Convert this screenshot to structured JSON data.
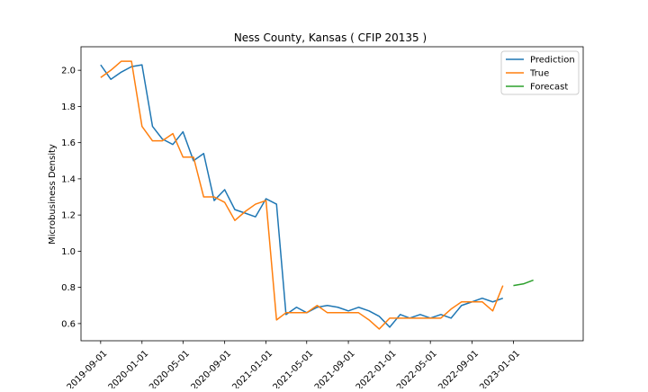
{
  "chart_data": {
    "type": "line",
    "title": "Ness County, Kansas ( CFIP 20135 )",
    "xlabel": "",
    "ylabel": "Microbusiness Density",
    "x_ticks": [
      "2019-09-01",
      "2020-01-01",
      "2020-05-01",
      "2020-09-01",
      "2021-01-01",
      "2021-05-01",
      "2021-09-01",
      "2022-01-01",
      "2022-05-01",
      "2022-09-01",
      "2023-01-01"
    ],
    "y_ticks": [
      "0.6",
      "0.8",
      "1.0",
      "1.2",
      "1.4",
      "1.6",
      "1.8",
      "2.0"
    ],
    "xlim": [
      "2019-07-05",
      "2023-07-26"
    ],
    "ylim": [
      0.505,
      2.13
    ],
    "grid": false,
    "legend_position": "top-right",
    "series": [
      {
        "name": "Prediction",
        "color": "#1f77b4",
        "points": [
          [
            "2019-09-01",
            2.03
          ],
          [
            "2019-10-01",
            1.95
          ],
          [
            "2019-11-01",
            1.99
          ],
          [
            "2019-12-01",
            2.02
          ],
          [
            "2020-01-01",
            2.03
          ],
          [
            "2020-02-01",
            1.69
          ],
          [
            "2020-03-01",
            1.62
          ],
          [
            "2020-04-01",
            1.59
          ],
          [
            "2020-05-01",
            1.66
          ],
          [
            "2020-06-01",
            1.5
          ],
          [
            "2020-07-01",
            1.54
          ],
          [
            "2020-08-01",
            1.28
          ],
          [
            "2020-09-01",
            1.34
          ],
          [
            "2020-10-01",
            1.23
          ],
          [
            "2020-11-01",
            1.21
          ],
          [
            "2020-12-01",
            1.19
          ],
          [
            "2021-01-01",
            1.29
          ],
          [
            "2021-02-01",
            1.26
          ],
          [
            "2021-03-01",
            0.65
          ],
          [
            "2021-04-01",
            0.69
          ],
          [
            "2021-05-01",
            0.66
          ],
          [
            "2021-06-01",
            0.69
          ],
          [
            "2021-07-01",
            0.7
          ],
          [
            "2021-08-01",
            0.69
          ],
          [
            "2021-09-01",
            0.67
          ],
          [
            "2021-10-01",
            0.69
          ],
          [
            "2021-11-01",
            0.67
          ],
          [
            "2021-12-01",
            0.64
          ],
          [
            "2022-01-01",
            0.58
          ],
          [
            "2022-02-01",
            0.65
          ],
          [
            "2022-03-01",
            0.63
          ],
          [
            "2022-04-01",
            0.65
          ],
          [
            "2022-05-01",
            0.63
          ],
          [
            "2022-06-01",
            0.65
          ],
          [
            "2022-07-01",
            0.63
          ],
          [
            "2022-08-01",
            0.7
          ],
          [
            "2022-09-01",
            0.72
          ],
          [
            "2022-10-01",
            0.74
          ],
          [
            "2022-11-01",
            0.72
          ],
          [
            "2022-12-01",
            0.74
          ]
        ]
      },
      {
        "name": "True",
        "color": "#ff7f0e",
        "points": [
          [
            "2019-09-01",
            1.96
          ],
          [
            "2019-10-01",
            2.0
          ],
          [
            "2019-11-01",
            2.05
          ],
          [
            "2019-12-01",
            2.05
          ],
          [
            "2020-01-01",
            1.69
          ],
          [
            "2020-02-01",
            1.61
          ],
          [
            "2020-03-01",
            1.61
          ],
          [
            "2020-04-01",
            1.65
          ],
          [
            "2020-05-01",
            1.52
          ],
          [
            "2020-06-01",
            1.52
          ],
          [
            "2020-07-01",
            1.3
          ],
          [
            "2020-08-01",
            1.3
          ],
          [
            "2020-09-01",
            1.27
          ],
          [
            "2020-10-01",
            1.17
          ],
          [
            "2020-11-01",
            1.22
          ],
          [
            "2020-12-01",
            1.26
          ],
          [
            "2021-01-01",
            1.28
          ],
          [
            "2021-02-01",
            0.62
          ],
          [
            "2021-03-01",
            0.66
          ],
          [
            "2021-04-01",
            0.66
          ],
          [
            "2021-05-01",
            0.66
          ],
          [
            "2021-06-01",
            0.7
          ],
          [
            "2021-07-01",
            0.66
          ],
          [
            "2021-08-01",
            0.66
          ],
          [
            "2021-09-01",
            0.66
          ],
          [
            "2021-10-01",
            0.66
          ],
          [
            "2021-11-01",
            0.62
          ],
          [
            "2021-12-01",
            0.57
          ],
          [
            "2022-01-01",
            0.63
          ],
          [
            "2022-02-01",
            0.63
          ],
          [
            "2022-03-01",
            0.63
          ],
          [
            "2022-04-01",
            0.63
          ],
          [
            "2022-05-01",
            0.63
          ],
          [
            "2022-06-01",
            0.63
          ],
          [
            "2022-07-01",
            0.68
          ],
          [
            "2022-08-01",
            0.72
          ],
          [
            "2022-09-01",
            0.72
          ],
          [
            "2022-10-01",
            0.72
          ],
          [
            "2022-11-01",
            0.67
          ],
          [
            "2022-12-01",
            0.81
          ]
        ]
      },
      {
        "name": "Forecast",
        "color": "#2ca02c",
        "points": [
          [
            "2023-01-01",
            0.81
          ],
          [
            "2023-02-01",
            0.82
          ],
          [
            "2023-03-01",
            0.84
          ]
        ]
      }
    ]
  }
}
